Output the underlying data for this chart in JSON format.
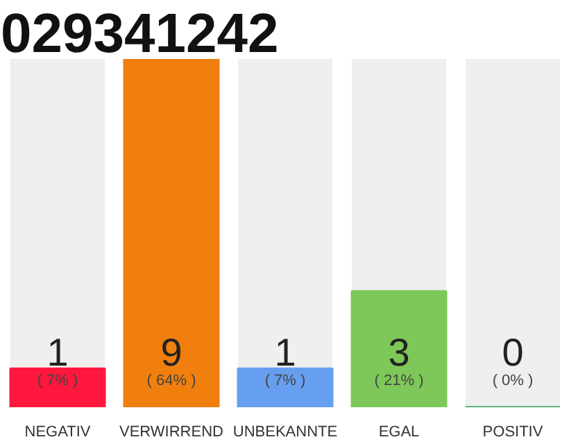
{
  "chart_data": {
    "type": "bar",
    "title": "029341242",
    "categories": [
      "NEGATIV",
      "VERWIRREND",
      "UNBEKANNTE",
      "EGAL",
      "POSITIV"
    ],
    "values": [
      1,
      9,
      1,
      3,
      0
    ],
    "colors": [
      "#ff173d",
      "#f07f0e",
      "#679ff0",
      "#7ec85a",
      "#28a050"
    ],
    "data_labels": true,
    "annotations": [
      "( 7% )",
      "( 64% )",
      "( 7% )",
      "( 21% )",
      "( 0% )"
    ],
    "grid": false
  }
}
